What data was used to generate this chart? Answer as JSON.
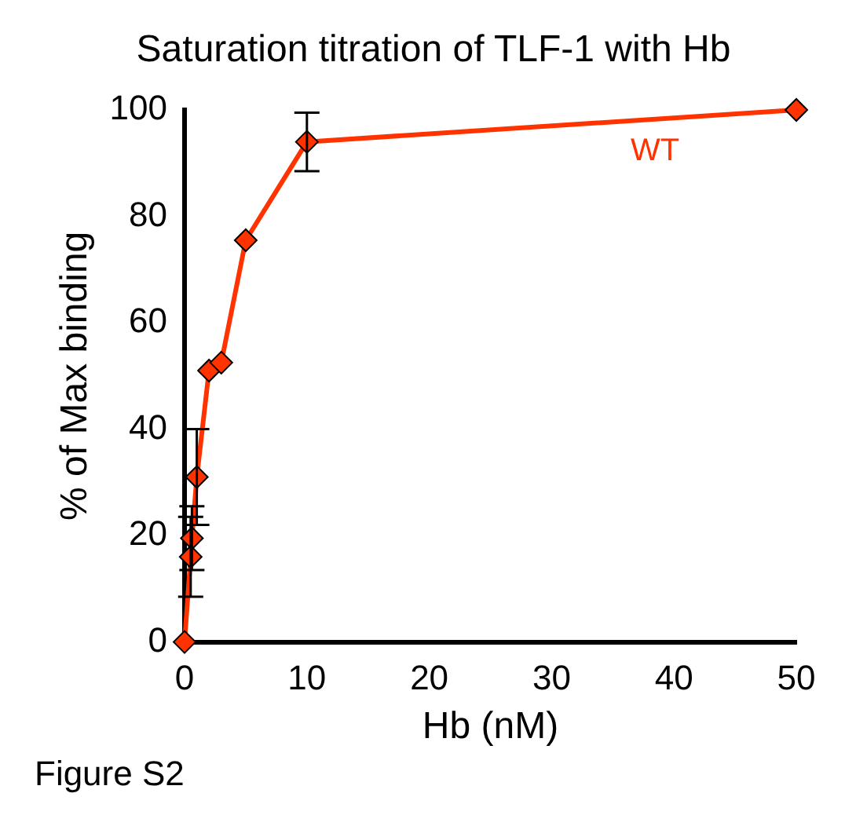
{
  "chart_data": {
    "type": "line",
    "title": "Saturation titration of TLF-1 with Hb",
    "xlabel": "Hb (nM)",
    "ylabel": "% of Max binding",
    "x": [
      0,
      0.5,
      0.6,
      1,
      2,
      3,
      5,
      10,
      50
    ],
    "series": [
      {
        "name": "WT",
        "color": "#ff3300",
        "values": [
          0,
          16,
          19.5,
          31,
          51,
          52.5,
          75.5,
          94,
          100
        ],
        "errors": [
          null,
          7.5,
          6,
          9,
          null,
          null,
          null,
          5.5,
          null
        ]
      }
    ],
    "xlim": [
      0,
      50
    ],
    "xticks": [
      0,
      10,
      20,
      30,
      40,
      50
    ],
    "ylim": [
      0,
      100
    ],
    "yticks": [
      0,
      20,
      40,
      60,
      80,
      100
    ],
    "grid": false,
    "legend": false,
    "marker": "diamond",
    "line_style": "solid",
    "annotations": [
      "Figure S2"
    ]
  }
}
